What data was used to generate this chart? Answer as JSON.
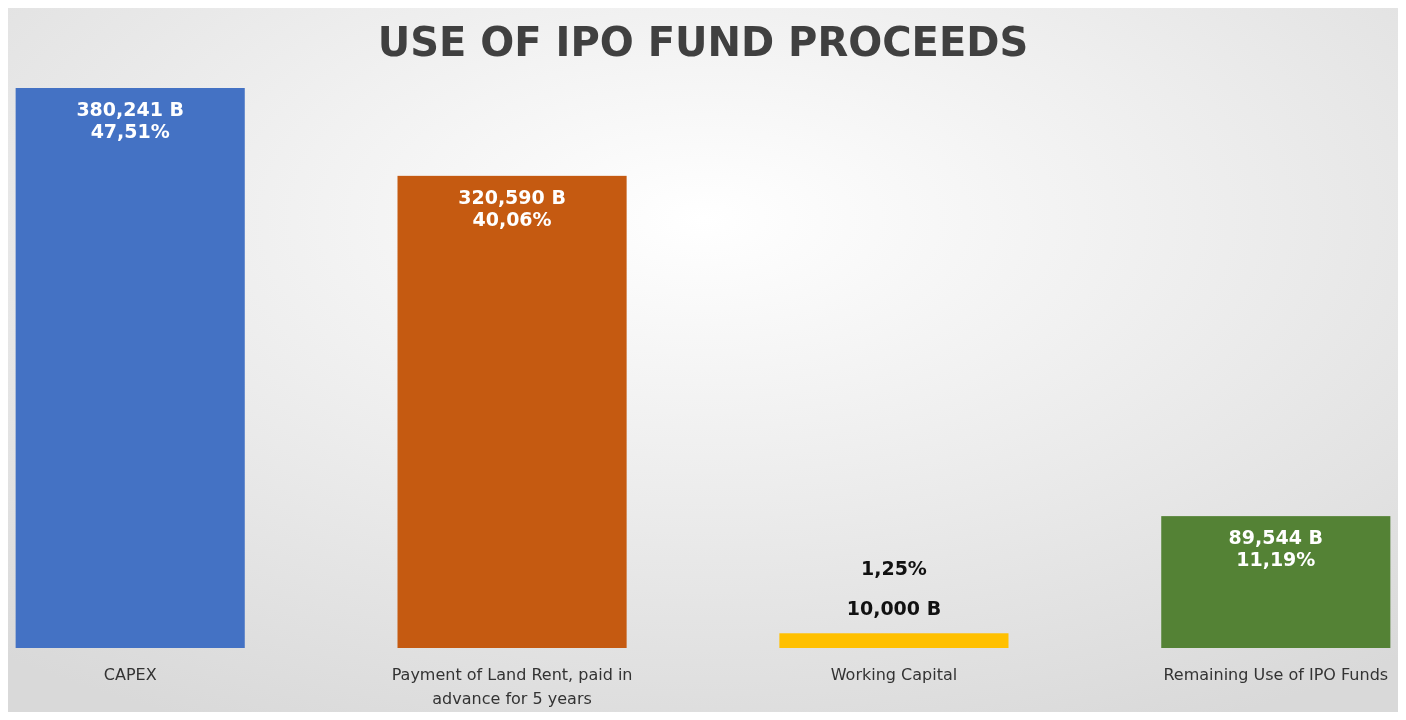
{
  "chart_data": {
    "type": "bar",
    "title": "USE OF IPO FUND PROCEEDS",
    "categories": [
      "CAPEX",
      "Payment of Land Rent, paid in advance for 5 years",
      "Working Capital",
      "Remaining Use of IPO Funds"
    ],
    "values": [
      380241,
      320590,
      10000,
      89544
    ],
    "colors": [
      "#4472c4",
      "#c55a11",
      "#ffc000",
      "#548235"
    ],
    "value_labels": [
      "380,241 B\n47,51%",
      "320,590 B\n40,06%",
      "1,25%\n10,000 B",
      "89,544 B\n11,19%"
    ]
  }
}
